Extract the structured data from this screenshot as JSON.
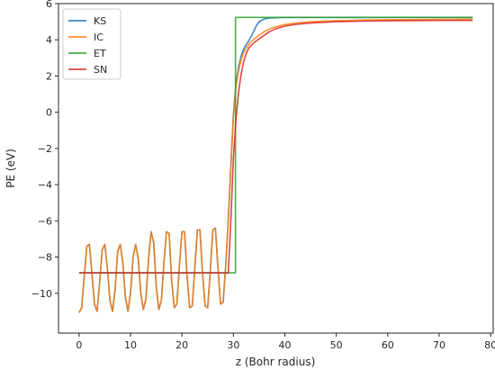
{
  "chart_data": {
    "type": "line",
    "xlabel": "z (Bohr radius)",
    "ylabel": "PE (eV)",
    "xlim": [
      -4,
      80.5
    ],
    "ylim": [
      -12.2,
      6
    ],
    "xticks": [
      0,
      10,
      20,
      30,
      40,
      50,
      60,
      70,
      80
    ],
    "yticks": [
      -10,
      -8,
      -6,
      -4,
      -2,
      0,
      2,
      4,
      6
    ],
    "xtick_labels": [
      "0",
      "10",
      "20",
      "30",
      "40",
      "50",
      "60",
      "70",
      "80"
    ],
    "ytick_labels": [
      "−10",
      "−8",
      "−6",
      "−4",
      "−2",
      "0",
      "2",
      "4",
      "6"
    ],
    "grid": false,
    "legend_position": "top-left",
    "series": [
      {
        "name": "KS",
        "color": "#1f77b4",
        "x": [
          0,
          0.5,
          1.0,
          1.5,
          2.0,
          2.5,
          3.0,
          3.5,
          4.0,
          4.5,
          5.0,
          5.5,
          6.0,
          6.5,
          7.0,
          7.5,
          8.0,
          8.5,
          9.0,
          9.5,
          10.0,
          10.5,
          11.0,
          11.5,
          12.0,
          12.5,
          13.0,
          13.5,
          14.0,
          14.5,
          15.0,
          15.5,
          16.0,
          16.5,
          17.0,
          17.5,
          18.0,
          18.5,
          19.0,
          19.5,
          20.0,
          20.5,
          21.0,
          21.5,
          22.0,
          22.5,
          23.0,
          23.5,
          24.0,
          24.5,
          25.0,
          25.5,
          26.0,
          26.5,
          27.0,
          27.5,
          28.0,
          28.5,
          29.0,
          29.5,
          30.0,
          30.5,
          31.0,
          31.5,
          32.0,
          32.5,
          33.0,
          33.5,
          34.0,
          34.5,
          35.0,
          36.0,
          37.0,
          38.0,
          39.0,
          40.0,
          42.0,
          45.0,
          50.0,
          55.0,
          60.0,
          65.0,
          70.0,
          76.5
        ],
        "y": [
          -11.07,
          -10.8,
          -9.1,
          -7.4,
          -7.3,
          -8.9,
          -10.6,
          -11.0,
          -9.4,
          -7.6,
          -7.3,
          -8.6,
          -10.4,
          -11.0,
          -9.8,
          -7.7,
          -7.3,
          -8.3,
          -10.2,
          -11.0,
          -10.0,
          -8.0,
          -7.3,
          -8.1,
          -10.0,
          -10.9,
          -10.3,
          -8.1,
          -6.6,
          -7.2,
          -9.6,
          -10.9,
          -10.4,
          -8.3,
          -6.6,
          -6.7,
          -9.3,
          -10.8,
          -10.6,
          -8.5,
          -6.6,
          -6.6,
          -9.1,
          -10.8,
          -10.7,
          -8.6,
          -6.5,
          -6.5,
          -8.9,
          -10.7,
          -10.8,
          -8.8,
          -6.5,
          -6.4,
          -8.6,
          -10.6,
          -10.5,
          -8.5,
          -6.0,
          -3.0,
          -0.1,
          1.6,
          2.5,
          3.1,
          3.5,
          3.75,
          3.95,
          4.2,
          4.5,
          4.8,
          5.0,
          5.15,
          5.2,
          5.22,
          5.23,
          5.24,
          5.24,
          5.24,
          5.24,
          5.24,
          5.24,
          5.24,
          5.24,
          5.24
        ]
      },
      {
        "name": "IC",
        "color": "#ff7f0e",
        "x": [
          0,
          0.5,
          1.0,
          1.5,
          2.0,
          2.5,
          3.0,
          3.5,
          4.0,
          4.5,
          5.0,
          5.5,
          6.0,
          6.5,
          7.0,
          7.5,
          8.0,
          8.5,
          9.0,
          9.5,
          10.0,
          10.5,
          11.0,
          11.5,
          12.0,
          12.5,
          13.0,
          13.5,
          14.0,
          14.5,
          15.0,
          15.5,
          16.0,
          16.5,
          17.0,
          17.5,
          18.0,
          18.5,
          19.0,
          19.5,
          20.0,
          20.5,
          21.0,
          21.5,
          22.0,
          22.5,
          23.0,
          23.5,
          24.0,
          24.5,
          25.0,
          25.5,
          26.0,
          26.5,
          27.0,
          27.5,
          28.0,
          28.5,
          29.0,
          29.5,
          30.0,
          30.5,
          31.0,
          31.5,
          32.0,
          32.5,
          33.0,
          33.5,
          34.0,
          34.5,
          35.0,
          36.0,
          37.0,
          38.0,
          39.0,
          40.0,
          42.0,
          45.0,
          50.0,
          55.0,
          60.0,
          65.0,
          70.0,
          76.5
        ],
        "y": [
          -11.07,
          -10.8,
          -9.1,
          -7.4,
          -7.3,
          -8.9,
          -10.6,
          -11.0,
          -9.4,
          -7.6,
          -7.3,
          -8.6,
          -10.4,
          -11.0,
          -9.8,
          -7.7,
          -7.3,
          -8.3,
          -10.2,
          -11.0,
          -10.0,
          -8.0,
          -7.3,
          -8.1,
          -10.0,
          -10.9,
          -10.3,
          -8.1,
          -6.6,
          -7.2,
          -9.6,
          -10.9,
          -10.4,
          -8.3,
          -6.6,
          -6.7,
          -9.3,
          -10.8,
          -10.6,
          -8.5,
          -6.6,
          -6.6,
          -9.1,
          -10.8,
          -10.7,
          -8.6,
          -6.5,
          -6.5,
          -8.9,
          -10.7,
          -10.8,
          -8.8,
          -6.5,
          -6.4,
          -8.6,
          -10.6,
          -10.5,
          -8.5,
          -6.0,
          -3.0,
          -0.2,
          1.4,
          2.3,
          2.9,
          3.3,
          3.55,
          3.75,
          3.9,
          4.05,
          4.15,
          4.25,
          4.45,
          4.6,
          4.7,
          4.78,
          4.84,
          4.92,
          5.0,
          5.06,
          5.09,
          5.11,
          5.12,
          5.13,
          5.14
        ]
      },
      {
        "name": "ET",
        "color": "#2ca02c",
        "x": [
          0,
          30.4,
          30.4,
          76.5
        ],
        "y": [
          -8.87,
          -8.87,
          5.24,
          5.24
        ]
      },
      {
        "name": "SN",
        "color": "#d62728",
        "x": [
          0,
          29.0,
          29.5,
          30.0,
          30.5,
          31.0,
          31.5,
          32.0,
          32.5,
          33.0,
          33.5,
          34.0,
          34.5,
          35.0,
          36.0,
          37.0,
          38.0,
          39.0,
          40.0,
          42.0,
          45.0,
          50.0,
          55.0,
          60.0,
          65.0,
          70.0,
          76.5
        ],
        "y": [
          -8.87,
          -8.87,
          -6.0,
          -2.5,
          -0.4,
          1.1,
          2.1,
          2.8,
          3.25,
          3.55,
          3.7,
          3.85,
          3.95,
          4.05,
          4.25,
          4.45,
          4.58,
          4.68,
          4.75,
          4.85,
          4.93,
          5.0,
          5.03,
          5.05,
          5.06,
          5.07,
          5.07
        ]
      }
    ]
  }
}
